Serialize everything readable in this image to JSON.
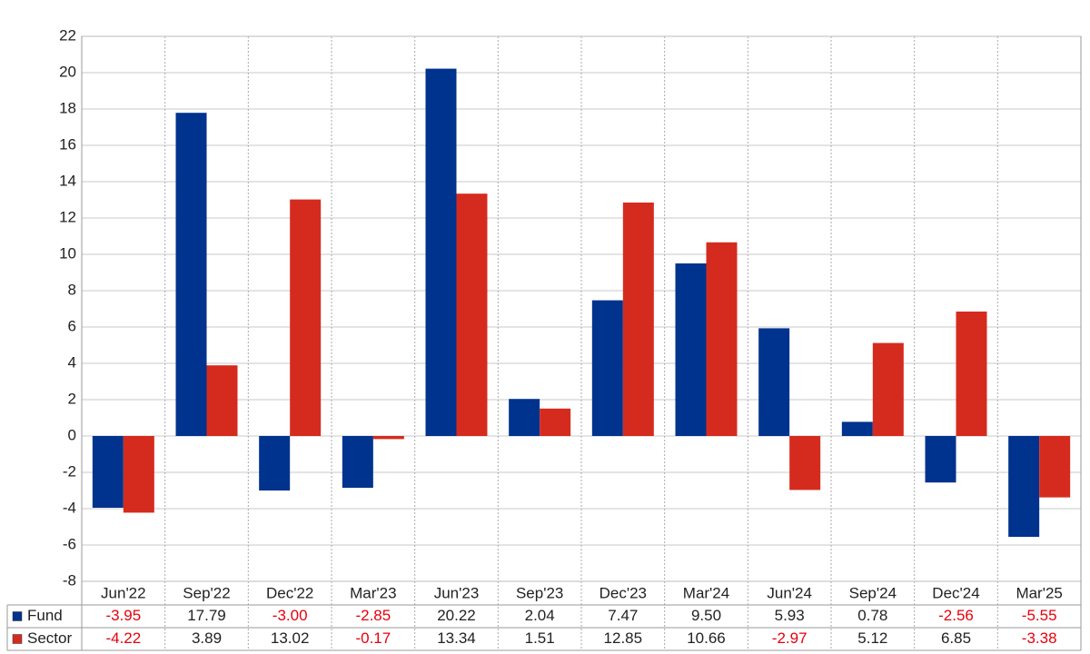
{
  "chart_data": {
    "type": "bar",
    "categories": [
      "Jun'22",
      "Sep'22",
      "Dec'22",
      "Mar'23",
      "Jun'23",
      "Sep'23",
      "Dec'23",
      "Mar'24",
      "Jun'24",
      "Sep'24",
      "Dec'24",
      "Mar'25"
    ],
    "series": [
      {
        "name": "Fund",
        "color": "#00338d",
        "values": [
          -3.95,
          17.79,
          -3.0,
          -2.85,
          20.22,
          2.04,
          7.47,
          9.5,
          5.93,
          0.78,
          -2.56,
          -5.55
        ],
        "value_labels": [
          "-3.95",
          "17.79",
          "-3.00",
          "-2.85",
          "20.22",
          "2.04",
          "7.47",
          "9.50",
          "5.93",
          "0.78",
          "-2.56",
          "-5.55"
        ]
      },
      {
        "name": "Sector",
        "color": "#d52b1e",
        "values": [
          -4.22,
          3.89,
          13.02,
          -0.17,
          13.34,
          1.51,
          12.85,
          10.66,
          -2.97,
          5.12,
          6.85,
          -3.38
        ],
        "value_labels": [
          "-4.22",
          "3.89",
          "13.02",
          "-0.17",
          "13.34",
          "1.51",
          "12.85",
          "10.66",
          "-2.97",
          "5.12",
          "6.85",
          "-3.38"
        ]
      }
    ],
    "ylim": [
      -8,
      22
    ],
    "yticks": [
      -8,
      -6,
      -4,
      -2,
      0,
      2,
      4,
      6,
      8,
      10,
      12,
      14,
      16,
      18,
      20,
      22
    ],
    "grid": true,
    "negative_label_color": "#e8000b"
  }
}
